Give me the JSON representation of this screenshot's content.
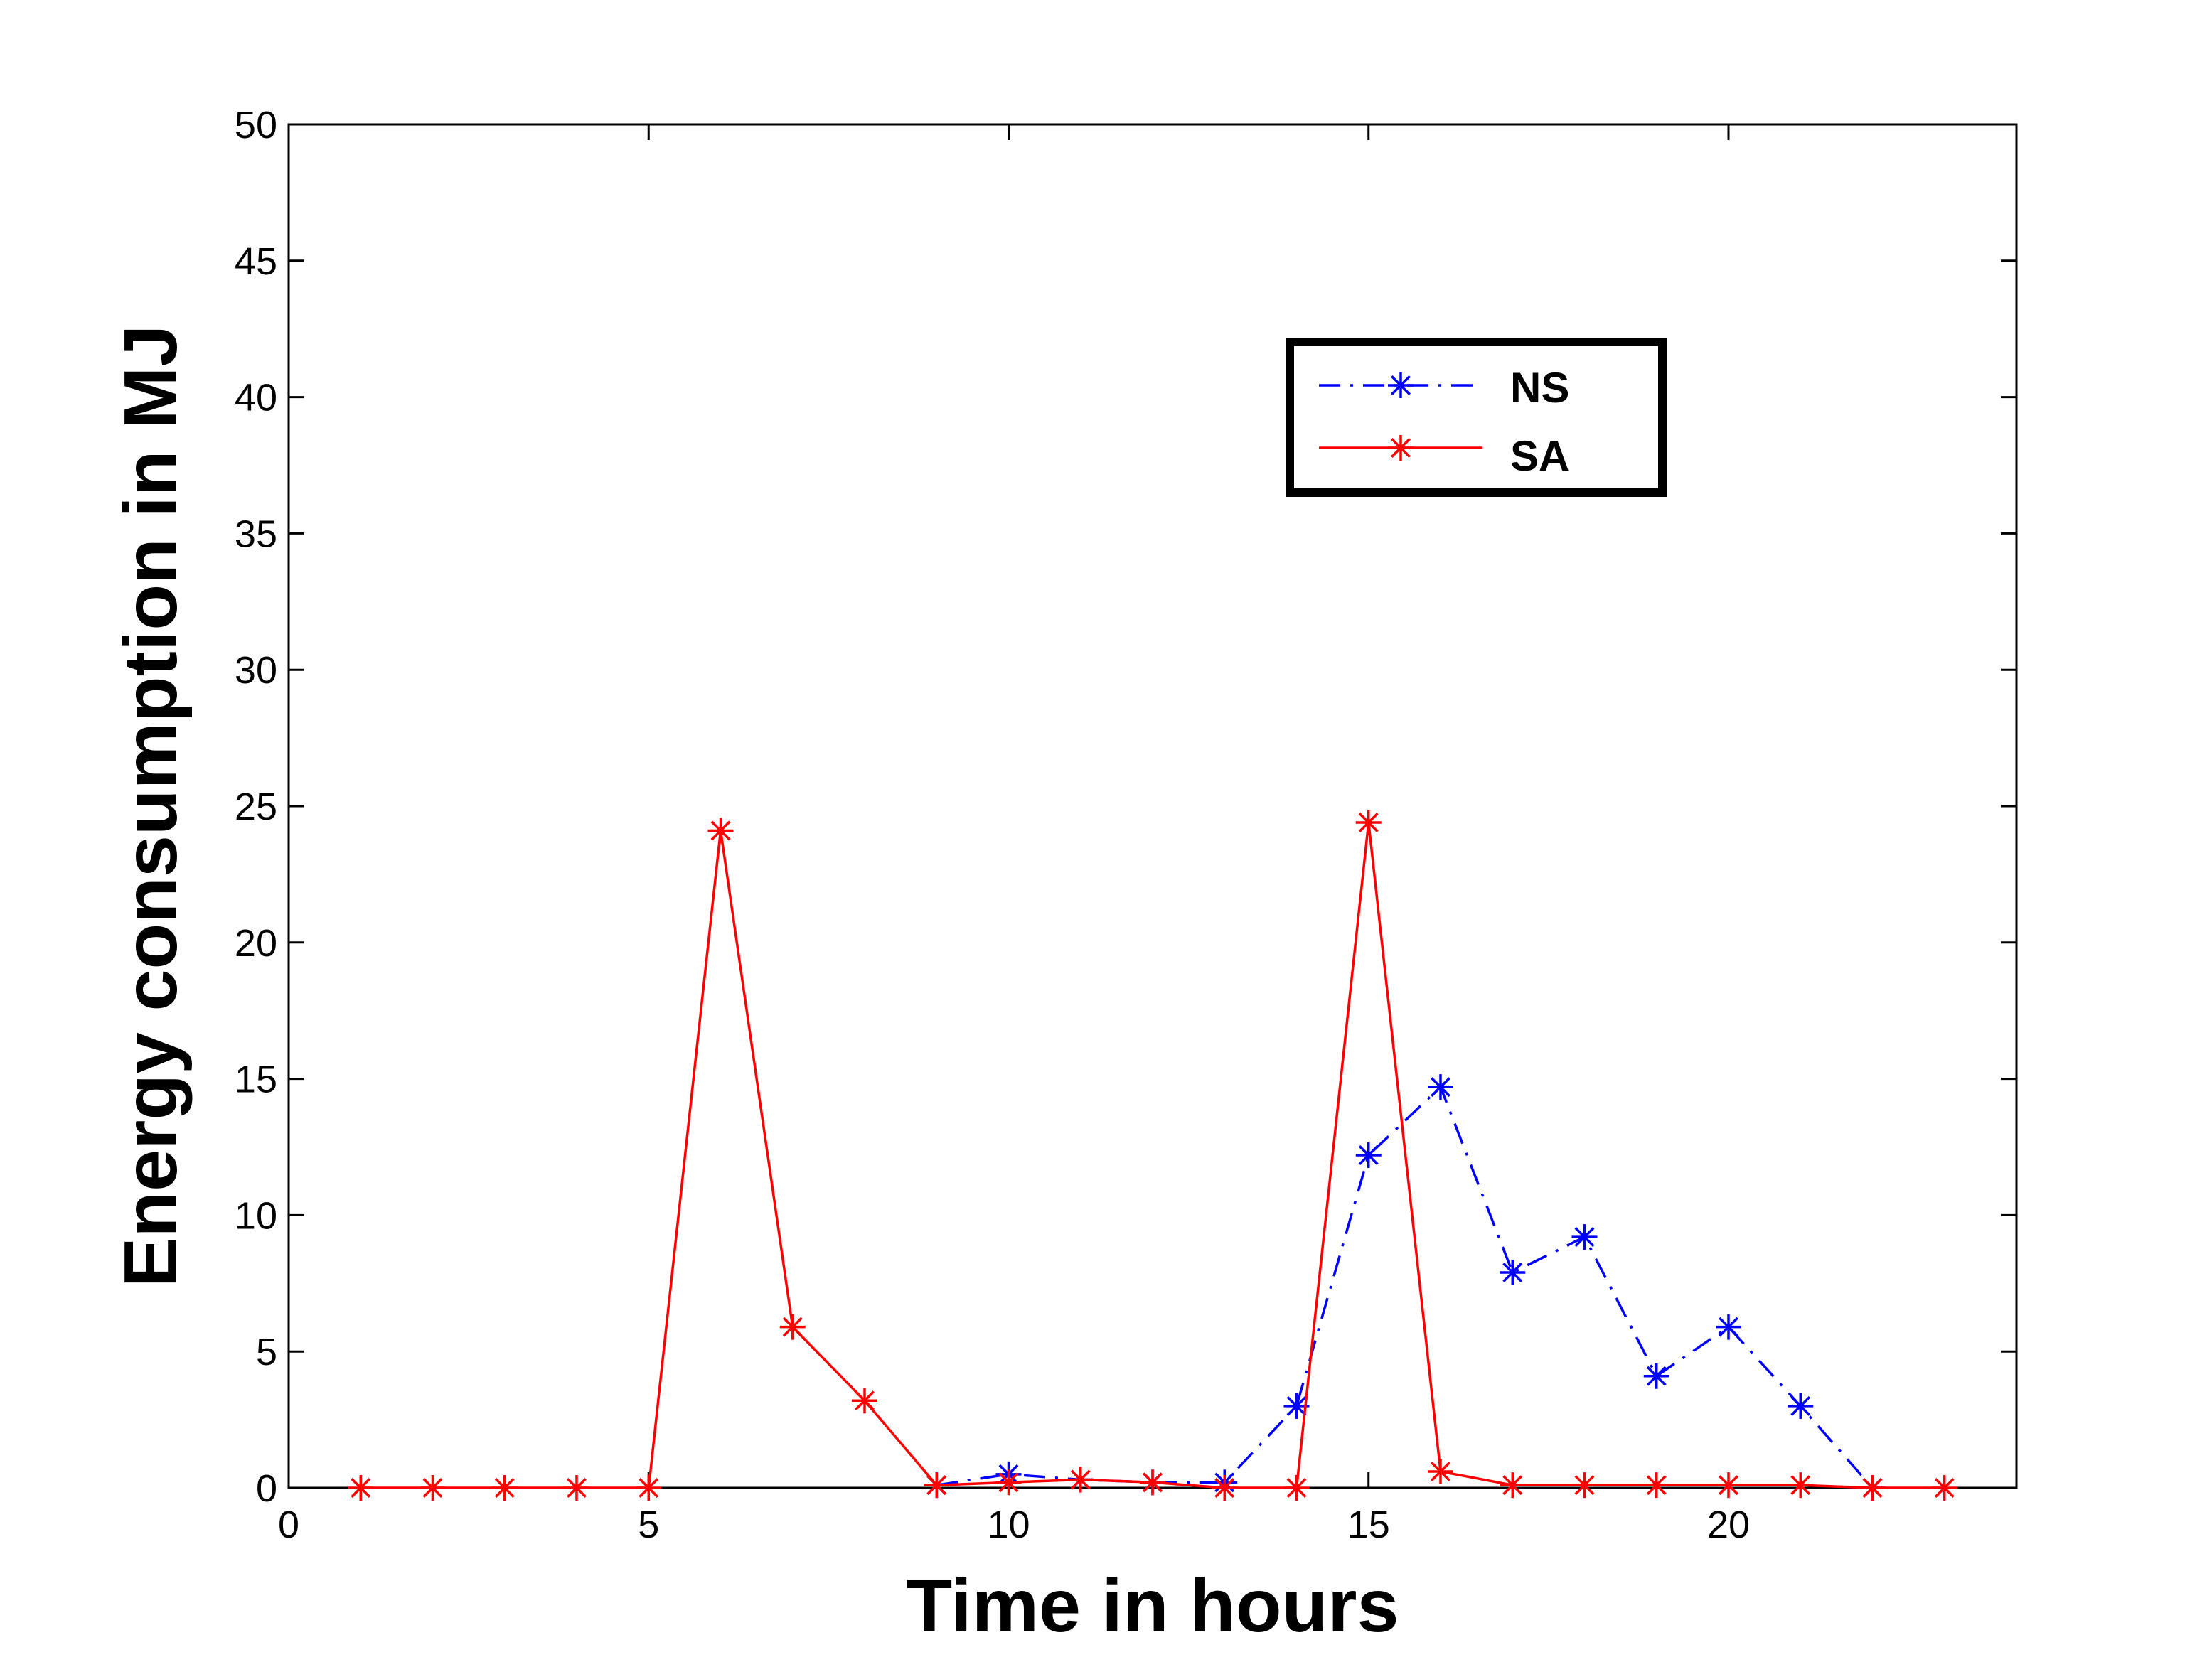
{
  "chart_data": {
    "type": "line",
    "title": "",
    "xlabel": "Time in hours",
    "ylabel": "Energy consumption in MJ",
    "xlim": [
      0,
      24
    ],
    "ylim": [
      0,
      50
    ],
    "x_ticks": [
      "0",
      "5",
      "10",
      "15",
      "20"
    ],
    "y_ticks": [
      "0",
      "5",
      "10",
      "15",
      "20",
      "25",
      "30",
      "35",
      "40",
      "45",
      "50"
    ],
    "grid": false,
    "legend_position": "top-right",
    "series": [
      {
        "name": "NS",
        "color": "#0000ff",
        "line_style": "dash-dot",
        "marker": "asterisk",
        "x": [
          9,
          10,
          11,
          12,
          13,
          14,
          15,
          16,
          17,
          18,
          19,
          20,
          21,
          22
        ],
        "values": [
          0.1,
          0.5,
          0.3,
          0.2,
          0.2,
          3.0,
          12.2,
          14.7,
          7.9,
          9.2,
          4.1,
          5.9,
          3.0,
          0.0
        ]
      },
      {
        "name": "SA",
        "color": "#ff0000",
        "line_style": "solid",
        "marker": "asterisk",
        "x": [
          1,
          2,
          3,
          4,
          5,
          6,
          7,
          8,
          9,
          10,
          11,
          12,
          13,
          14,
          15,
          16,
          17,
          18,
          19,
          20,
          21,
          22,
          23
        ],
        "values": [
          0,
          0,
          0,
          0,
          0,
          24.1,
          5.9,
          3.2,
          0.1,
          0.2,
          0.3,
          0.2,
          0.0,
          0.0,
          24.4,
          0.6,
          0.1,
          0.1,
          0.1,
          0.1,
          0.1,
          0.0,
          0.0
        ]
      }
    ]
  }
}
